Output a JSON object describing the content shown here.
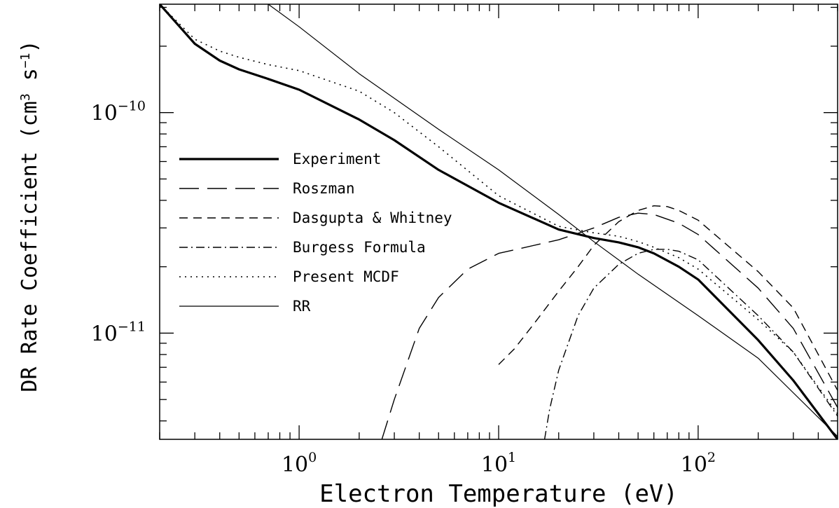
{
  "chart_data": {
    "type": "line",
    "title": "",
    "xlabel": "Electron Temperature (eV)",
    "ylabel_main": "DR Rate Coefficient (cm",
    "ylabel_sup1": "3",
    "ylabel_mid": " s",
    "ylabel_sup2": "−1",
    "ylabel_end": ")",
    "xscale": "log",
    "yscale": "log",
    "xlim": [
      0.2,
      500
    ],
    "ylim": [
      3.3e-12,
      3.1e-10
    ],
    "xticks_major": [
      {
        "value": 1,
        "base": "10",
        "exp": "0"
      },
      {
        "value": 10,
        "base": "10",
        "exp": "1"
      },
      {
        "value": 100,
        "base": "10",
        "exp": "2"
      }
    ],
    "yticks_major": [
      {
        "value": 1e-10,
        "base": "10",
        "exp": "−10"
      },
      {
        "value": 1e-11,
        "base": "10",
        "exp": "−11"
      }
    ],
    "grid": false,
    "legend_position": "middle-left",
    "series": [
      {
        "name": "Experiment",
        "style": "solid-thick",
        "x": [
          0.2,
          0.3,
          0.4,
          0.5,
          0.7,
          1,
          2,
          3,
          5,
          10,
          20,
          30,
          40,
          50,
          60,
          80,
          100,
          200,
          300,
          500
        ],
        "y": [
          3.1e-10,
          2.05e-10,
          1.72e-10,
          1.57e-10,
          1.42e-10,
          1.27e-10,
          9.3e-11,
          7.5e-11,
          5.5e-11,
          3.9e-11,
          2.95e-11,
          2.7e-11,
          2.58e-11,
          2.45e-11,
          2.3e-11,
          2e-11,
          1.75e-11,
          9.3e-12,
          6.1e-12,
          3.3e-12
        ]
      },
      {
        "name": "Roszman",
        "style": "long-dash",
        "x": [
          2.6,
          3.0,
          4.0,
          5.0,
          7.0,
          10,
          20,
          30,
          40,
          50,
          60,
          80,
          100,
          200,
          300,
          500
        ],
        "y": [
          3.3e-12,
          5e-12,
          1.05e-11,
          1.45e-11,
          1.95e-11,
          2.3e-11,
          2.65e-11,
          3e-11,
          3.35e-11,
          3.5e-11,
          3.45e-11,
          3.15e-11,
          2.8e-11,
          1.6e-11,
          1.05e-11,
          4.6e-12
        ]
      },
      {
        "name": "Dasgupta & Whitney",
        "style": "short-dash",
        "x": [
          10,
          12,
          15,
          20,
          25,
          30,
          40,
          50,
          60,
          70,
          80,
          100,
          200,
          300,
          500
        ],
        "y": [
          7.2e-12,
          8.5e-12,
          1.1e-11,
          1.55e-11,
          2e-11,
          2.5e-11,
          3.2e-11,
          3.6e-11,
          3.78e-11,
          3.75e-11,
          3.6e-11,
          3.25e-11,
          1.9e-11,
          1.3e-11,
          5.5e-12
        ]
      },
      {
        "name": "Burgess Formula",
        "style": "dash-dot",
        "x": [
          17,
          18,
          20,
          25,
          30,
          40,
          50,
          60,
          70,
          80,
          100,
          200,
          300,
          500
        ],
        "y": [
          3.3e-12,
          4.5e-12,
          6.8e-12,
          1.2e-11,
          1.6e-11,
          2.05e-11,
          2.3e-11,
          2.4e-11,
          2.4e-11,
          2.35e-11,
          2.15e-11,
          1.2e-11,
          8.2e-12,
          4.2e-12
        ]
      },
      {
        "name": "Present MCDF",
        "style": "dotted",
        "x": [
          0.2,
          0.3,
          0.4,
          0.5,
          0.7,
          1,
          2,
          3,
          5,
          10,
          20,
          30,
          40,
          50,
          60,
          80,
          100,
          200,
          300,
          500
        ],
        "y": [
          3.1e-10,
          2.15e-10,
          1.9e-10,
          1.78e-10,
          1.65e-10,
          1.55e-10,
          1.25e-10,
          1e-10,
          7e-11,
          4.2e-11,
          3.05e-11,
          2.85e-11,
          2.75e-11,
          2.6e-11,
          2.45e-11,
          2.2e-11,
          1.95e-11,
          1.15e-11,
          8.2e-12,
          4.3e-12
        ]
      },
      {
        "name": "RR",
        "style": "solid-thin",
        "x": [
          0.7,
          1,
          2,
          5,
          10,
          20,
          30,
          50,
          100,
          200,
          500
        ],
        "y": [
          3.1e-10,
          2.45e-10,
          1.5e-10,
          8.4e-11,
          5.5e-11,
          3.45e-11,
          2.6e-11,
          1.85e-11,
          1.2e-11,
          7.7e-12,
          3.4e-12
        ]
      }
    ]
  }
}
